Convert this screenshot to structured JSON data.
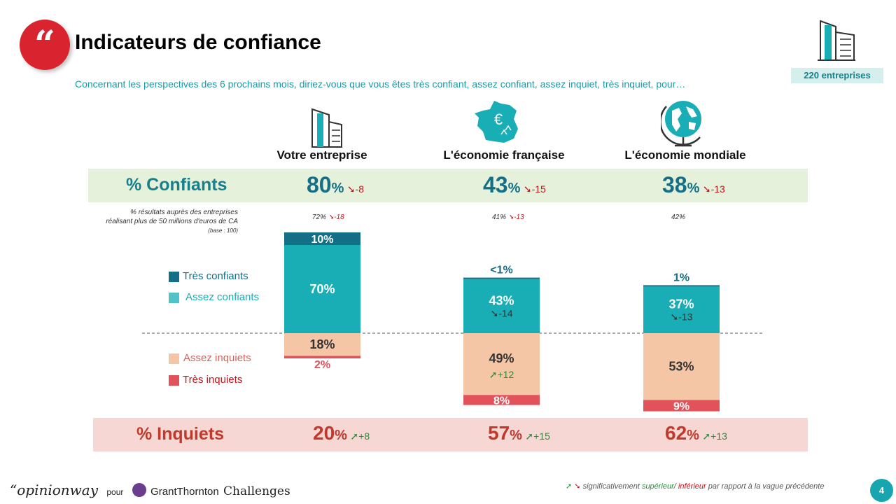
{
  "header": {
    "title": "Indicateurs de confiance",
    "question": "Concernant les perspectives des 6 prochains mois, diriez-vous que vous êtes très confiant, assez confiant, assez inquiet, très inquiet, pour…",
    "sample": "220 entreprises"
  },
  "colors": {
    "tres_confiants": "#136f85",
    "assez_confiants": "#19aeb6",
    "assez_inquiets": "#f5c6a6",
    "tres_inquiets": "#e2525a",
    "down_arrow": "#c0161b",
    "up_arrow": "#2c8a3a"
  },
  "bands": {
    "confiants_label": "% Confiants",
    "inquiets_label": "% Inquiets"
  },
  "note": {
    "line1": "% résultats auprès des entreprises",
    "line2": "réalisant plus de 50 millions d'euros de CA",
    "line3": "(base : 100)"
  },
  "legend": {
    "tres_confiants": "Très confiants",
    "assez_confiants": "Assez confiants",
    "assez_inquiets": "Assez inquiets",
    "tres_inquiets": "Très inquiets"
  },
  "chart_data": {
    "type": "bar",
    "stacked": true,
    "categories": [
      "Votre entreprise",
      "L'économie française",
      "L'économie mondiale"
    ],
    "series": [
      {
        "name": "Très confiants",
        "values": [
          10,
          0.5,
          1
        ],
        "labels": [
          "10%",
          "<1%",
          "1%"
        ]
      },
      {
        "name": "Assez confiants",
        "values": [
          70,
          43,
          37
        ],
        "labels": [
          "70%",
          "43%",
          "37%"
        ],
        "deltas": [
          "",
          "-14",
          "-13"
        ]
      },
      {
        "name": "Assez inquiets",
        "values": [
          18,
          49,
          53
        ],
        "labels": [
          "18%",
          "49%",
          "53%"
        ],
        "deltas": [
          "",
          "+12",
          ""
        ]
      },
      {
        "name": "Très inquiets",
        "values": [
          2,
          8,
          9
        ],
        "labels": [
          "2%",
          "8%",
          "9%"
        ]
      }
    ],
    "confiants_total": {
      "values": [
        "80",
        "43",
        "38"
      ],
      "deltas": [
        "-8",
        "-15",
        "-13"
      ]
    },
    "inquiets_total": {
      "values": [
        "20",
        "57",
        "62"
      ],
      "deltas": [
        "+8",
        "+15",
        "+13"
      ]
    },
    "large_companies": {
      "values": [
        "72%",
        "41%",
        "42%"
      ],
      "deltas": [
        "-18",
        "-13",
        ""
      ]
    }
  },
  "footer": {
    "brand": "opinionway",
    "pour": "pour",
    "partner1": "GrantThornton",
    "partner2": "Challenges",
    "note_a": "significativement ",
    "note_sup": "supérieur",
    "note_sep": "/ ",
    "note_inf": "inférieur",
    "note_b": " par rapport à la vague précédente",
    "page": "4"
  }
}
